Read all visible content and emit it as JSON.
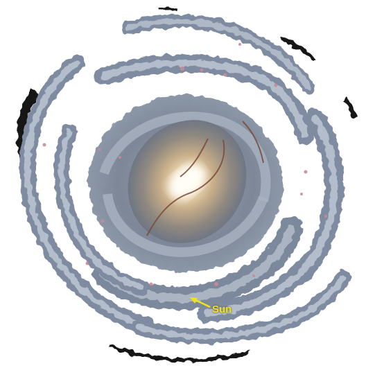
{
  "annotation": {
    "label": "Sun",
    "label_color": "#f3e21a"
  },
  "colors": {
    "background": "#ffffff",
    "arm_outer": "#8592a6",
    "arm_inner": "#b3bdcb",
    "star_forming_regions": "#c98a98",
    "dust_lanes": "#7a4a3a",
    "bulge_core": "#fff4d8",
    "bulge_edge": "#7f7a78",
    "outer_fragments": "#111111"
  }
}
